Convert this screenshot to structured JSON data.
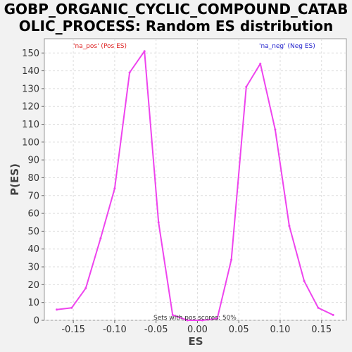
{
  "chart_data": {
    "type": "line",
    "title_lines": [
      "GOBP_ORGANIC_CYCLIC_COMPOUND_CATAB",
      "OLIC_PROCESS: Random ES distribution"
    ],
    "xlabel": "ES",
    "ylabel": "P(ES)",
    "xlim": [
      -0.185,
      0.18
    ],
    "ylim": [
      0,
      158
    ],
    "x_ticks": [
      -0.15,
      -0.1,
      -0.05,
      0.0,
      0.05,
      0.1,
      0.15
    ],
    "x_tick_labels": [
      "-0.15",
      "-0.10",
      "-0.05",
      "0.00",
      "0.05",
      "0.10",
      "0.15"
    ],
    "y_ticks": [
      0,
      10,
      20,
      30,
      40,
      50,
      60,
      70,
      80,
      90,
      100,
      110,
      120,
      130,
      140,
      150
    ],
    "y_tick_labels": [
      "0",
      "10",
      "20",
      "30",
      "40",
      "50",
      "60",
      "70",
      "80",
      "90",
      "100",
      "110",
      "120",
      "130",
      "140",
      "150"
    ],
    "grid": true,
    "legend": {
      "pos": {
        "label": "'na_pos' (Pos ES)",
        "color": "#dd2222"
      },
      "neg": {
        "label": "'na_neg' (Neg ES)",
        "color": "#2222cc"
      }
    },
    "annotation": "Sets with pos scores: 50%",
    "series": [
      {
        "color": "#ee44ee",
        "x": [
          -0.17,
          -0.152,
          -0.135,
          -0.117,
          -0.1,
          -0.082,
          -0.064,
          -0.047,
          -0.03,
          -0.012,
          0.006,
          0.024,
          0.041,
          0.059,
          0.076,
          0.094,
          0.111,
          0.129,
          0.146,
          0.164
        ],
        "y": [
          6,
          7,
          18,
          46,
          74,
          139,
          151,
          55,
          3,
          0,
          0,
          1,
          34,
          131,
          144,
          107,
          53,
          22,
          7,
          3
        ]
      }
    ]
  }
}
